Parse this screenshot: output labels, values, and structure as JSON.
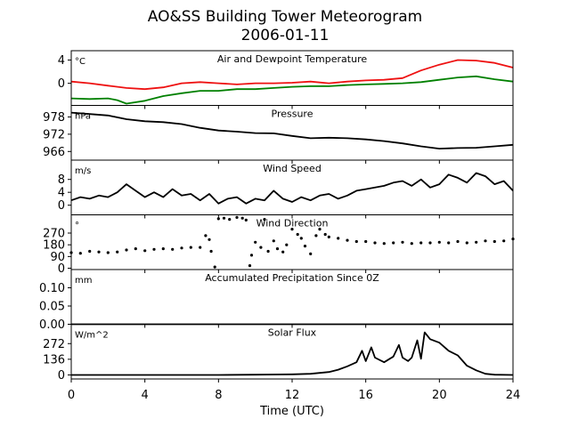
{
  "figure": {
    "title_line1": "AO&SS Building Tower Meteorogram",
    "title_line2": "2006-01-11",
    "xlabel": "Time (UTC)"
  },
  "chart_data": [
    {
      "id": "temperature",
      "type": "line",
      "title": "Air and Dewpoint Temperature",
      "unit": "°C",
      "ylim": [
        -3.8,
        5.6
      ],
      "yticks": [
        0,
        4
      ],
      "yticklabels": [
        "0",
        "4"
      ],
      "xlim": [
        0,
        24
      ],
      "grid": false,
      "series": [
        {
          "color": "#ee1111",
          "x": [
            0,
            1,
            2,
            3,
            4,
            5,
            6,
            7,
            8,
            9,
            10,
            11,
            12,
            13,
            14,
            15,
            16,
            17,
            18,
            19,
            20,
            21,
            22,
            23,
            24
          ],
          "y": [
            0.3,
            0.0,
            -0.4,
            -0.8,
            -1.0,
            -0.7,
            0.0,
            0.2,
            0.0,
            -0.2,
            0.0,
            0.0,
            0.1,
            0.3,
            0.0,
            0.3,
            0.5,
            0.6,
            0.9,
            2.2,
            3.2,
            4.0,
            3.9,
            3.5,
            2.7
          ]
        },
        {
          "color": "#008000",
          "x": [
            0,
            1,
            2,
            2.5,
            3,
            4,
            5,
            6,
            7,
            8,
            9,
            10,
            11,
            12,
            13,
            14,
            15,
            16,
            17,
            18,
            19,
            20,
            21,
            22,
            23,
            24
          ],
          "y": [
            -2.6,
            -2.7,
            -2.6,
            -2.9,
            -3.5,
            -3.0,
            -2.2,
            -1.7,
            -1.3,
            -1.3,
            -1.0,
            -1.0,
            -0.8,
            -0.6,
            -0.5,
            -0.5,
            -0.3,
            -0.2,
            -0.1,
            0.0,
            0.2,
            0.6,
            1.0,
            1.2,
            0.7,
            0.3
          ]
        }
      ]
    },
    {
      "id": "pressure",
      "type": "line",
      "title": "Pressure",
      "unit": "hPa",
      "ylim": [
        963,
        982
      ],
      "yticks": [
        966,
        972,
        978
      ],
      "yticklabels": [
        "966",
        "972",
        "978"
      ],
      "xlim": [
        0,
        24
      ],
      "grid": false,
      "series": [
        {
          "color": "#000000",
          "x": [
            0,
            1,
            2,
            3,
            4,
            5,
            6,
            7,
            8,
            9,
            10,
            11,
            12,
            13,
            14,
            15,
            16,
            17,
            18,
            19,
            20,
            21,
            22,
            23,
            24
          ],
          "y": [
            979.5,
            979.0,
            978.5,
            977.2,
            976.5,
            976.2,
            975.5,
            974.2,
            973.3,
            972.9,
            972.4,
            972.3,
            971.4,
            970.6,
            970.8,
            970.6,
            970.2,
            969.6,
            968.8,
            967.8,
            967.0,
            967.2,
            967.3,
            967.8,
            968.3
          ]
        }
      ]
    },
    {
      "id": "wind_speed",
      "type": "line",
      "title": "Wind Speed",
      "unit": "m/s",
      "ylim": [
        -3,
        14
      ],
      "yticks": [
        0,
        4,
        8
      ],
      "yticklabels": [
        "0",
        "4",
        "8"
      ],
      "xlim": [
        0,
        24
      ],
      "grid": false,
      "series": [
        {
          "color": "#000000",
          "x": [
            0,
            0.5,
            1,
            1.5,
            2,
            2.5,
            3,
            3.5,
            4,
            4.5,
            5,
            5.5,
            6,
            6.5,
            7,
            7.5,
            8,
            8.5,
            9,
            9.5,
            10,
            10.5,
            11,
            11.5,
            12,
            12.5,
            13,
            13.5,
            14,
            14.5,
            15,
            15.5,
            16,
            16.5,
            17,
            17.5,
            18,
            18.5,
            19,
            19.5,
            20,
            20.5,
            21,
            21.5,
            22,
            22.5,
            23,
            23.5,
            24
          ],
          "y": [
            1.5,
            2.5,
            2.0,
            3.0,
            2.5,
            4.0,
            6.5,
            4.5,
            2.5,
            4.0,
            2.5,
            5.0,
            3.0,
            3.5,
            1.5,
            3.5,
            0.5,
            2.0,
            2.5,
            0.5,
            2.0,
            1.5,
            4.5,
            2.0,
            1.0,
            2.5,
            1.5,
            3.0,
            3.5,
            2.0,
            3.0,
            4.5,
            5.0,
            5.5,
            6.0,
            7.0,
            7.5,
            6.0,
            8.0,
            5.5,
            6.5,
            9.5,
            8.5,
            7.0,
            10.0,
            9.0,
            6.5,
            7.5,
            4.5
          ]
        }
      ]
    },
    {
      "id": "wind_direction",
      "type": "scatter",
      "title": "Wind Direction",
      "unit": "°",
      "ylim": [
        -10,
        410
      ],
      "yticks": [
        0,
        90,
        180,
        270
      ],
      "yticklabels": [
        "0",
        "90",
        "180",
        "270"
      ],
      "xlim": [
        0,
        24
      ],
      "grid": false,
      "series": [
        {
          "color": "#000000",
          "x": [
            0,
            0.5,
            1,
            1.5,
            2,
            2.5,
            3,
            3.5,
            4,
            4.5,
            5,
            5.5,
            6,
            6.5,
            7,
            7.3,
            7.5,
            7.6,
            7.8,
            8.0,
            8.3,
            8.6,
            9.0,
            9.3,
            9.5,
            9.7,
            9.8,
            10.0,
            10.3,
            10.5,
            10.7,
            11.0,
            11.2,
            11.5,
            11.7,
            12.0,
            12.3,
            12.5,
            12.7,
            13.0,
            13.3,
            13.5,
            13.8,
            14.0,
            14.5,
            15.0,
            15.5,
            16.0,
            16.5,
            17.0,
            17.5,
            18.0,
            18.5,
            19.0,
            19.5,
            20.0,
            20.5,
            21.0,
            21.5,
            22.0,
            22.5,
            23.0,
            23.5,
            24.0
          ],
          "y": [
            120,
            115,
            130,
            125,
            120,
            125,
            140,
            150,
            135,
            145,
            150,
            145,
            155,
            160,
            160,
            250,
            220,
            130,
            10,
            380,
            385,
            375,
            390,
            385,
            370,
            20,
            100,
            200,
            160,
            375,
            130,
            210,
            150,
            125,
            180,
            300,
            260,
            230,
            170,
            110,
            250,
            300,
            260,
            240,
            230,
            215,
            205,
            205,
            195,
            190,
            195,
            200,
            190,
            195,
            195,
            200,
            195,
            205,
            195,
            200,
            210,
            205,
            210,
            225
          ]
        }
      ]
    },
    {
      "id": "precipitation",
      "type": "line",
      "title": "Accumulated Precipitation Since 0Z",
      "unit": "mm",
      "ylim": [
        0,
        0.15
      ],
      "yticks": [
        0.0,
        0.05,
        0.1
      ],
      "yticklabels": [
        "0.00",
        "0.05",
        "0.10"
      ],
      "xlim": [
        0,
        24
      ],
      "grid": false,
      "series": [
        {
          "color": "#000000",
          "x": [
            0,
            24
          ],
          "y": [
            0,
            0
          ]
        }
      ]
    },
    {
      "id": "solar_flux",
      "type": "line",
      "title": "Solar Flux",
      "unit": "W/m^2",
      "ylim": [
        -35,
        440
      ],
      "yticks": [
        0,
        136,
        272
      ],
      "yticklabels": [
        "0",
        "136",
        "272"
      ],
      "xlim": [
        0,
        24
      ],
      "grid": false,
      "series": [
        {
          "color": "#000000",
          "x": [
            0,
            8,
            10,
            12,
            13,
            14,
            14.5,
            15,
            15.5,
            15.8,
            16,
            16.3,
            16.5,
            17,
            17.5,
            17.8,
            18,
            18.3,
            18.5,
            18.8,
            19,
            19.2,
            19.5,
            20,
            20.5,
            21,
            21.5,
            22,
            22.5,
            23,
            24
          ],
          "y": [
            0,
            0,
            2,
            5,
            10,
            25,
            45,
            75,
            110,
            210,
            120,
            240,
            150,
            110,
            160,
            260,
            150,
            120,
            150,
            300,
            140,
            370,
            310,
            280,
            210,
            170,
            80,
            40,
            10,
            2,
            0
          ]
        }
      ]
    }
  ],
  "x_axis": {
    "ticks": [
      0,
      4,
      8,
      12,
      16,
      20,
      24
    ],
    "ticklabels": [
      "0",
      "4",
      "8",
      "12",
      "16",
      "20",
      "24"
    ]
  }
}
